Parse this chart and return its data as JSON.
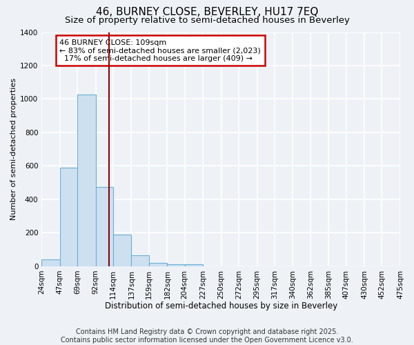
{
  "title1": "46, BURNEY CLOSE, BEVERLEY, HU17 7EQ",
  "title2": "Size of property relative to semi-detached houses in Beverley",
  "xlabel": "Distribution of semi-detached houses by size in Beverley",
  "ylabel": "Number of semi-detached properties",
  "bin_edges": [
    24,
    47,
    69,
    92,
    114,
    137,
    159,
    182,
    204,
    227,
    250,
    272,
    295,
    317,
    340,
    362,
    385,
    407,
    430,
    452,
    475
  ],
  "bar_heights": [
    40,
    590,
    1025,
    475,
    190,
    65,
    20,
    10,
    10,
    0,
    0,
    0,
    0,
    0,
    0,
    0,
    0,
    0,
    0,
    0
  ],
  "bar_color": "#cde0f0",
  "bar_edge_color": "#6aaed6",
  "property_size": 109,
  "vline_color": "#8b0000",
  "annotation_line1": "46 BURNEY CLOSE: 109sqm",
  "annotation_line2": "← 83% of semi-detached houses are smaller (2,023)",
  "annotation_line3": "  17% of semi-detached houses are larger (409) →",
  "annotation_box_color": "#cc0000",
  "ylim": [
    0,
    1400
  ],
  "yticks": [
    0,
    200,
    400,
    600,
    800,
    1000,
    1200,
    1400
  ],
  "footer1": "Contains HM Land Registry data © Crown copyright and database right 2025.",
  "footer2": "Contains public sector information licensed under the Open Government Licence v3.0.",
  "background_color": "#eef2f7",
  "plot_background_color": "#eef2f7",
  "grid_color": "#ffffff",
  "title1_fontsize": 11,
  "title2_fontsize": 9.5,
  "xlabel_fontsize": 8.5,
  "ylabel_fontsize": 8,
  "tick_fontsize": 7.5,
  "annot_fontsize": 8,
  "footer_fontsize": 7
}
